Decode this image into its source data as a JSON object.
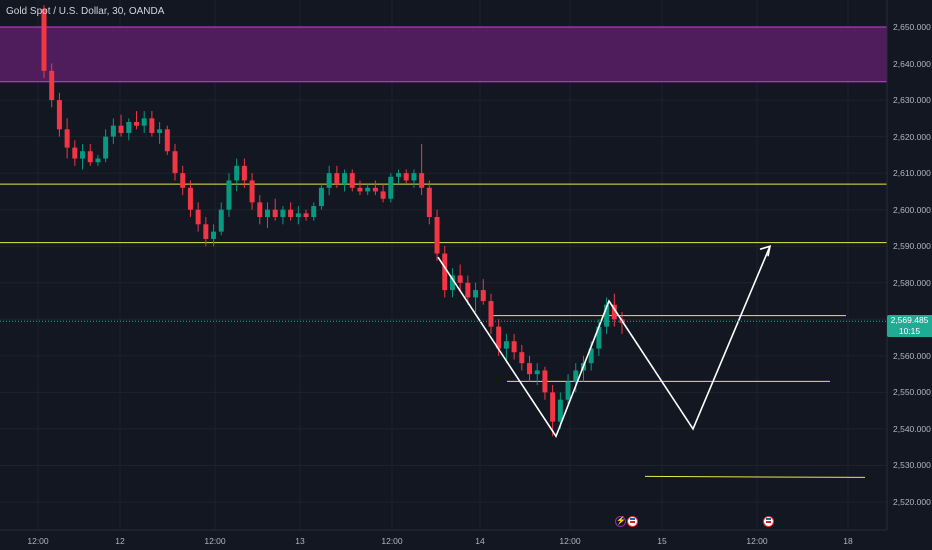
{
  "header": {
    "title": "Gold Spot / U.S. Dollar, 30, OANDA"
  },
  "price_axis": {
    "ticks": [
      "2,650.000",
      "2,640.000",
      "2,630.000",
      "2,620.000",
      "2,610.000",
      "2,600.000",
      "2,590.000",
      "2,580.000",
      "2,570.000",
      "2,560.000",
      "2,550.000",
      "2,540.000",
      "2,530.000",
      "2,520.000"
    ],
    "tick_values": [
      2650,
      2640,
      2630,
      2620,
      2610,
      2600,
      2590,
      2580,
      2570,
      2560,
      2550,
      2540,
      2530,
      2520
    ]
  },
  "current_price": {
    "value": "2,569.485",
    "countdown": "10:15",
    "numeric": 2569.485,
    "color": "#22ab94"
  },
  "time_axis": {
    "ticks": [
      "12:00",
      "12",
      "12:00",
      "13",
      "12:00",
      "14",
      "12:00",
      "15",
      "12:00",
      "18"
    ]
  },
  "colors": {
    "up": "#089981",
    "down": "#f23645",
    "level_line": "#e8e84a",
    "zone_fill": "#5a1d66",
    "zone_border": "#c842d6",
    "projection": "#ffffff",
    "event_icon": "#9c27b0"
  },
  "chart_data": {
    "type": "candlestick",
    "symbol": "Gold Spot / U.S. Dollar",
    "interval": "30",
    "source": "OANDA",
    "ylim": [
      2517,
      2654
    ],
    "zone": [
      2635,
      2650
    ],
    "horizontal_levels": [
      2607,
      2591,
      2571,
      2553,
      2527
    ],
    "candles": [
      [
        2655,
        2656,
        2636,
        2638
      ],
      [
        2638,
        2640,
        2628,
        2630
      ],
      [
        2630,
        2632,
        2620,
        2622
      ],
      [
        2622,
        2625,
        2614,
        2617
      ],
      [
        2617,
        2619,
        2612,
        2614
      ],
      [
        2614,
        2618,
        2611,
        2616
      ],
      [
        2616,
        2618,
        2612,
        2613
      ],
      [
        2613,
        2615,
        2612,
        2614
      ],
      [
        2614,
        2622,
        2613,
        2620
      ],
      [
        2620,
        2625,
        2618,
        2623
      ],
      [
        2623,
        2626,
        2620,
        2621
      ],
      [
        2621,
        2625,
        2619,
        2624
      ],
      [
        2624,
        2627,
        2622,
        2623
      ],
      [
        2623,
        2627,
        2621,
        2625
      ],
      [
        2625,
        2627,
        2620,
        2621
      ],
      [
        2621,
        2624,
        2618,
        2622
      ],
      [
        2622,
        2623,
        2615,
        2616
      ],
      [
        2616,
        2618,
        2608,
        2610
      ],
      [
        2610,
        2612,
        2604,
        2606
      ],
      [
        2606,
        2608,
        2598,
        2600
      ],
      [
        2600,
        2602,
        2594,
        2596
      ],
      [
        2596,
        2598,
        2590,
        2592
      ],
      [
        2592,
        2596,
        2590,
        2594
      ],
      [
        2594,
        2602,
        2593,
        2600
      ],
      [
        2600,
        2610,
        2598,
        2608
      ],
      [
        2608,
        2614,
        2605,
        2612
      ],
      [
        2612,
        2614,
        2606,
        2608
      ],
      [
        2608,
        2610,
        2600,
        2602
      ],
      [
        2602,
        2604,
        2596,
        2598
      ],
      [
        2598,
        2602,
        2595,
        2600
      ],
      [
        2600,
        2603,
        2597,
        2598
      ],
      [
        2598,
        2601,
        2596,
        2600
      ],
      [
        2600,
        2602,
        2597,
        2598
      ],
      [
        2598,
        2601,
        2596,
        2599
      ],
      [
        2599,
        2600,
        2597,
        2598
      ],
      [
        2598,
        2602,
        2597,
        2601
      ],
      [
        2601,
        2607,
        2600,
        2606
      ],
      [
        2606,
        2612,
        2604,
        2610
      ],
      [
        2610,
        2612,
        2606,
        2607
      ],
      [
        2607,
        2611,
        2605,
        2610
      ],
      [
        2610,
        2611,
        2605,
        2606
      ],
      [
        2606,
        2608,
        2604,
        2605
      ],
      [
        2605,
        2607,
        2604,
        2606
      ],
      [
        2606,
        2608,
        2604,
        2605
      ],
      [
        2605,
        2607,
        2602,
        2603
      ],
      [
        2603,
        2610,
        2602,
        2609
      ],
      [
        2609,
        2611,
        2607,
        2610
      ],
      [
        2610,
        2611,
        2607,
        2608
      ],
      [
        2608,
        2611,
        2606,
        2610
      ],
      [
        2610,
        2618,
        2604,
        2606
      ],
      [
        2606,
        2608,
        2596,
        2598
      ],
      [
        2598,
        2600,
        2586,
        2588
      ],
      [
        2588,
        2590,
        2576,
        2578
      ],
      [
        2578,
        2584,
        2576,
        2582
      ],
      [
        2582,
        2585,
        2578,
        2580
      ],
      [
        2580,
        2582,
        2574,
        2576
      ],
      [
        2576,
        2580,
        2572,
        2578
      ],
      [
        2578,
        2581,
        2574,
        2575
      ],
      [
        2575,
        2577,
        2566,
        2568
      ],
      [
        2568,
        2570,
        2560,
        2562
      ],
      [
        2562,
        2566,
        2558,
        2564
      ],
      [
        2564,
        2566,
        2559,
        2561
      ],
      [
        2561,
        2563,
        2556,
        2558
      ],
      [
        2558,
        2560,
        2553,
        2555
      ],
      [
        2555,
        2558,
        2552,
        2556
      ],
      [
        2556,
        2557,
        2548,
        2550
      ],
      [
        2550,
        2552,
        2538,
        2542
      ],
      [
        2542,
        2550,
        2540,
        2548
      ],
      [
        2548,
        2555,
        2546,
        2553
      ],
      [
        2553,
        2558,
        2550,
        2556
      ],
      [
        2556,
        2560,
        2553,
        2558
      ],
      [
        2558,
        2564,
        2556,
        2562
      ],
      [
        2562,
        2570,
        2560,
        2568
      ],
      [
        2568,
        2576,
        2566,
        2574
      ],
      [
        2574,
        2577,
        2568,
        2570
      ],
      [
        2570,
        2572,
        2566,
        2569
      ]
    ],
    "projection_path": [
      [
        438,
        2587
      ],
      [
        556,
        2538
      ],
      [
        609,
        2575
      ],
      [
        693,
        2540
      ],
      [
        770,
        2590
      ]
    ]
  }
}
